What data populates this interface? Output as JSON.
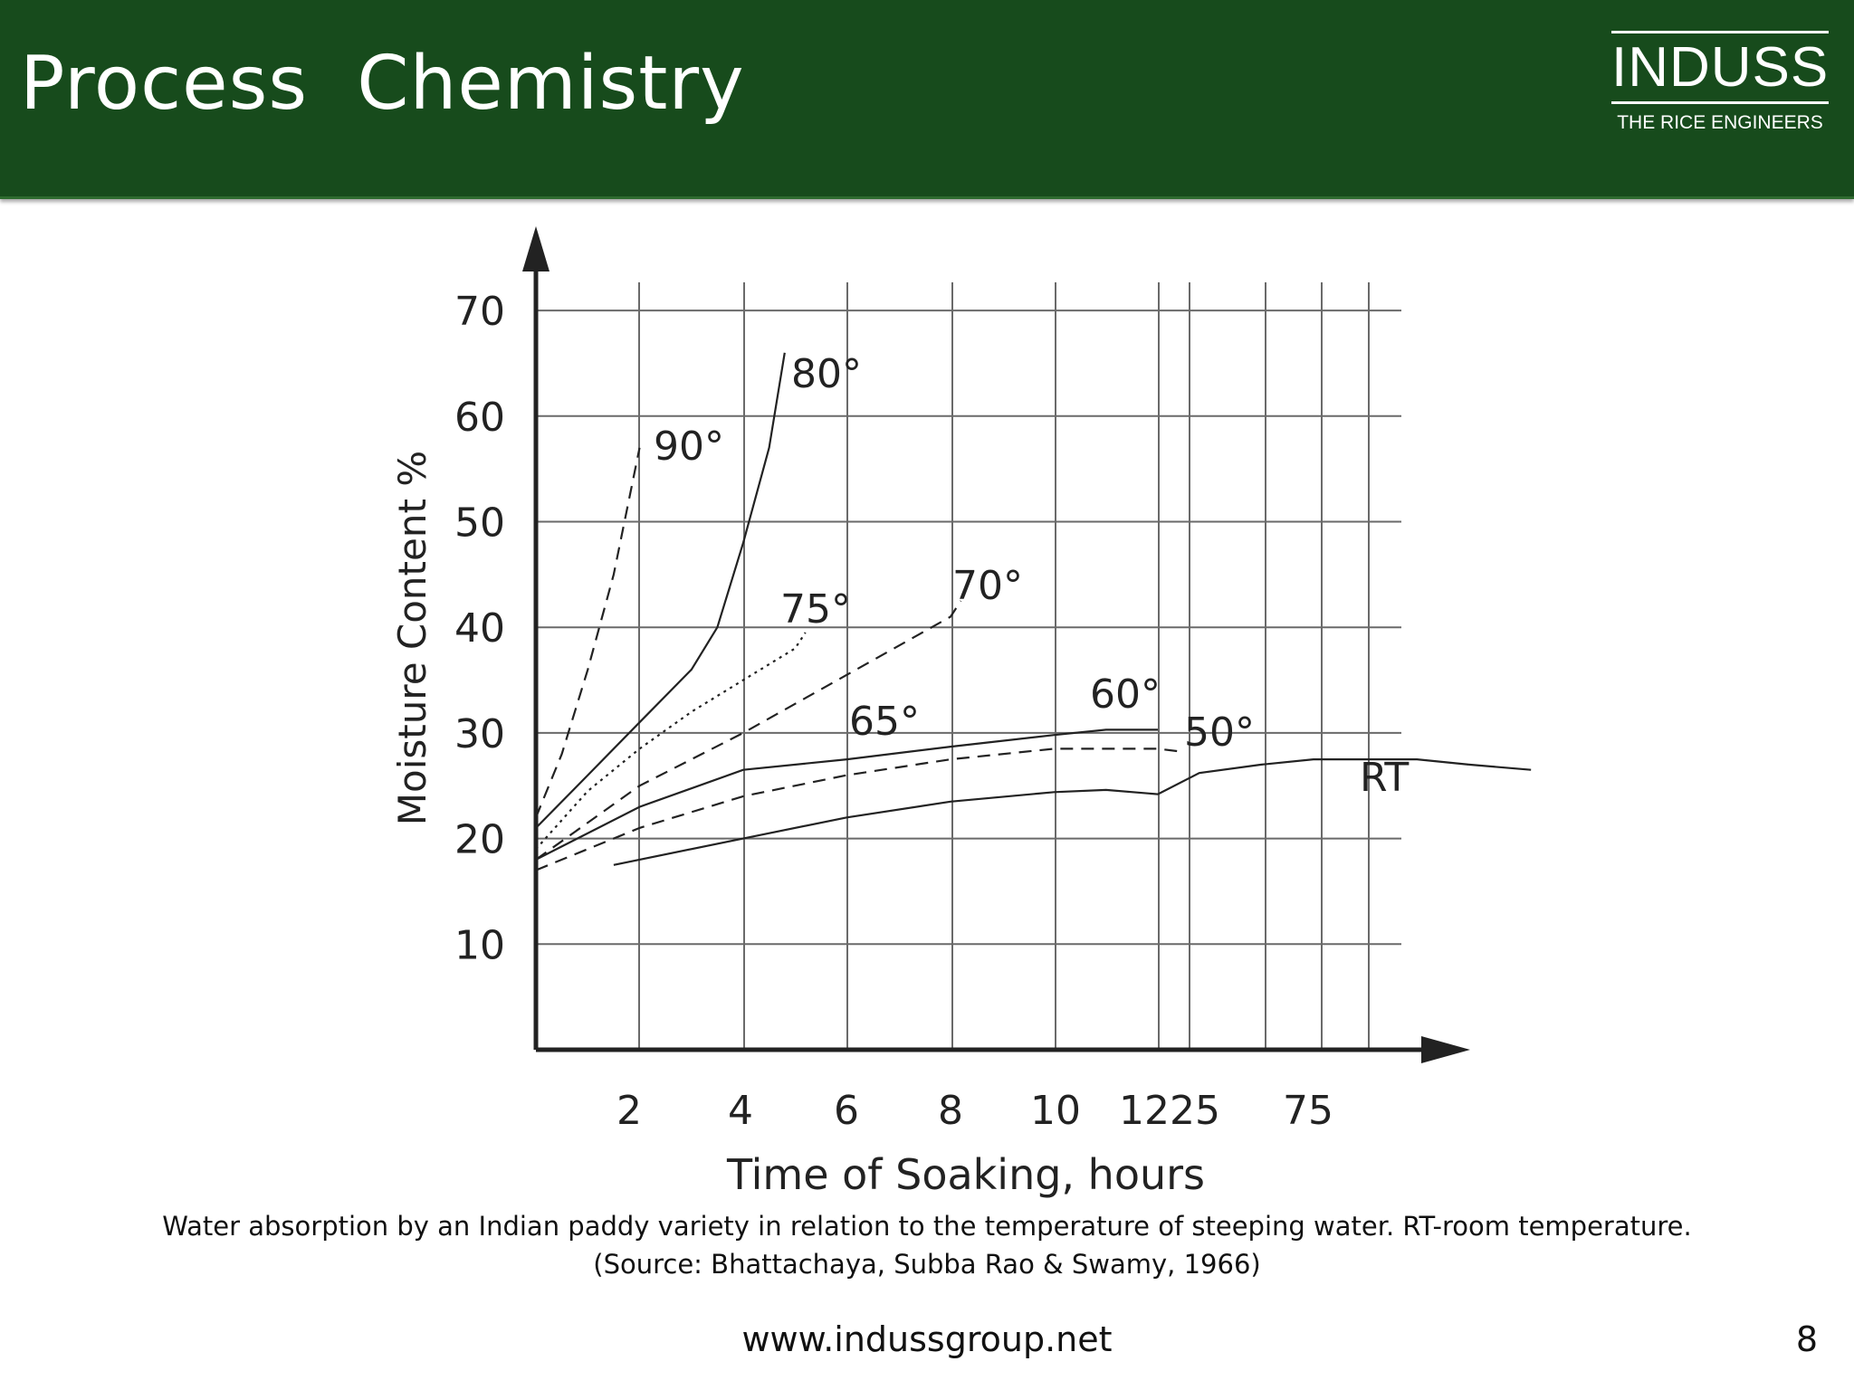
{
  "slide": {
    "title": "Process  Chemistry",
    "logo": {
      "name": "INDUSS",
      "tagline": "THE RICE ENGINEERS"
    },
    "caption_line1": "Water absorption by an Indian paddy variety in relation to the temperature of steeping water. RT-room temperature.",
    "caption_line2": "(Source: Bhattachaya, Subba Rao & Swamy, 1966)",
    "url": "www.indussgroup.net",
    "page_number": "8",
    "colors": {
      "header_bg": "#174b1c",
      "header_text": "#ffffff",
      "chart_ink": "#222222"
    }
  },
  "chart_data": {
    "type": "line",
    "title": "",
    "xlabel": "Time of Soaking, hours",
    "ylabel": "Moisture Content %",
    "ylim": [
      0,
      70
    ],
    "yticks": [
      10,
      20,
      30,
      40,
      50,
      60,
      70
    ],
    "xticks": [
      "2",
      "4",
      "6",
      "8",
      "10",
      "12",
      "25",
      "75"
    ],
    "x_scale": "broken axis: 0–12 h linear, then 25 and 75 h",
    "grid": true,
    "series": [
      {
        "name": "90°",
        "style": "dashed",
        "points": [
          [
            0,
            22
          ],
          [
            0.5,
            28
          ],
          [
            1,
            36
          ],
          [
            1.5,
            45
          ],
          [
            2,
            57
          ]
        ]
      },
      {
        "name": "80°",
        "style": "solid",
        "points": [
          [
            0,
            21
          ],
          [
            1,
            26
          ],
          [
            2,
            31
          ],
          [
            3,
            36
          ],
          [
            3.5,
            40
          ],
          [
            4,
            48
          ],
          [
            4.5,
            57
          ],
          [
            4.8,
            66
          ]
        ]
      },
      {
        "name": "75°",
        "style": "dotted",
        "points": [
          [
            0,
            19
          ],
          [
            1,
            24.5
          ],
          [
            2,
            28.5
          ],
          [
            3,
            32
          ],
          [
            4,
            35
          ],
          [
            5,
            38
          ],
          [
            5.2,
            39.5
          ]
        ]
      },
      {
        "name": "70°",
        "style": "dashed",
        "points": [
          [
            0,
            18
          ],
          [
            2,
            25
          ],
          [
            4,
            30
          ],
          [
            6,
            35.5
          ],
          [
            8,
            41
          ],
          [
            8.2,
            42.5
          ]
        ]
      },
      {
        "name": "65°",
        "style": "solid",
        "points": [
          [
            0,
            18
          ],
          [
            2,
            23
          ],
          [
            4,
            26.5
          ],
          [
            6,
            27.5
          ],
          [
            8,
            28.7
          ],
          [
            10,
            29.8
          ],
          [
            11,
            30.3
          ],
          [
            12,
            30.3
          ]
        ]
      },
      {
        "name": "60°",
        "style": "dashed",
        "points": [
          [
            0,
            17
          ],
          [
            2,
            21
          ],
          [
            4,
            24
          ],
          [
            6,
            26
          ],
          [
            8,
            27.5
          ],
          [
            10,
            28.5
          ],
          [
            12,
            28.5
          ],
          [
            12.5,
            28.2
          ]
        ]
      },
      {
        "name": "50°",
        "style": "solid",
        "points": [
          [
            1.5,
            17.5
          ],
          [
            4,
            20
          ],
          [
            6,
            22
          ],
          [
            8,
            23.5
          ],
          [
            10,
            24.4
          ],
          [
            11,
            24.6
          ],
          [
            12,
            24.2
          ],
          [
            12.8,
            26.2
          ],
          [
            14,
            27
          ],
          [
            15,
            27.5
          ],
          [
            17,
            27.5
          ],
          [
            18,
            27
          ]
        ]
      },
      {
        "name": "RT",
        "style": "solid",
        "points": [
          [
            18,
            27
          ],
          [
            19.2,
            26.5
          ]
        ]
      }
    ]
  }
}
